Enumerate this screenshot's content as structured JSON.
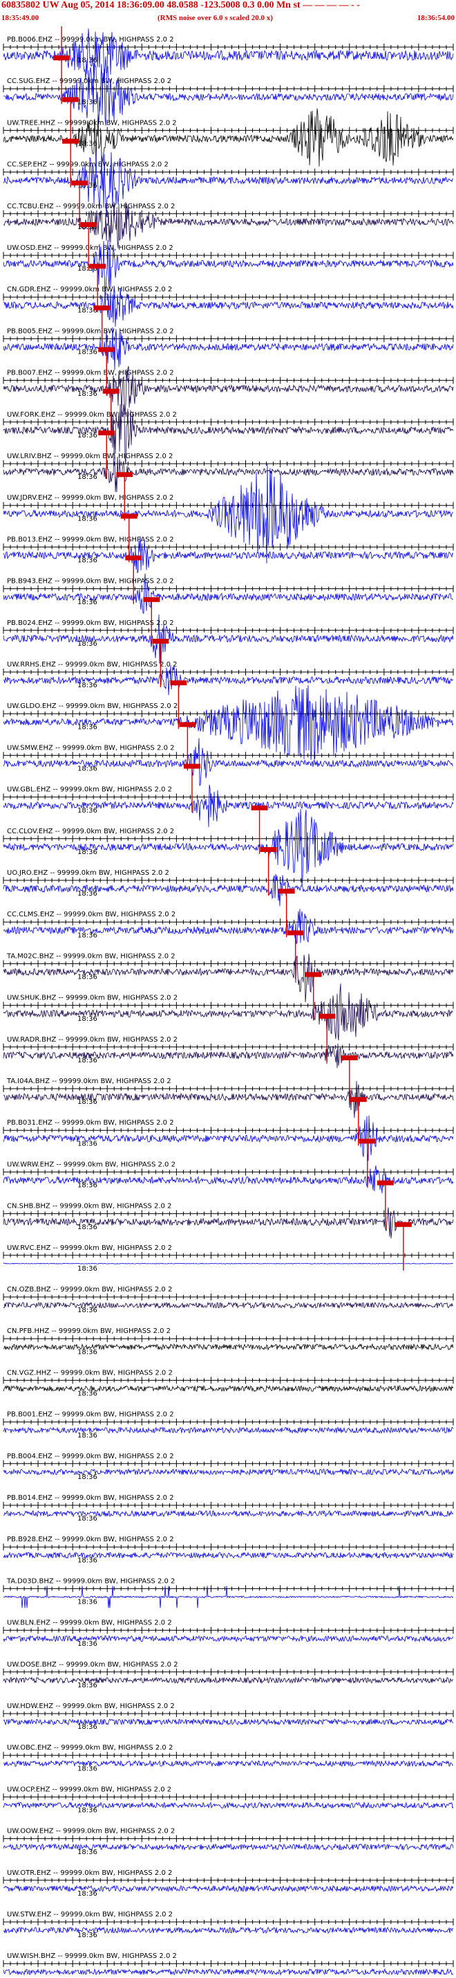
{
  "header": {
    "title": "60835802 UW Aug 05, 2014 18:36:09.00    48.0588 -123.5008  0.3 0.00 Mn st — — — — - -",
    "start_time": "18:35:49.00",
    "end_time": "18:36:54.00",
    "subtitle": "(RMS noise over 6.0 s scaled 20.0 x)"
  },
  "minute_label": "18:36",
  "colors": {
    "header": "#d40000",
    "pick": "#d40000",
    "trace_blue": "#0000e6",
    "trace_dark": "#14004b",
    "trace_black": "#000000"
  },
  "traces": [
    {
      "label": "PB.B006.EHZ -- 99999.0km BW, HIGHPASS  2.0  2",
      "color": "blue",
      "amp": 7,
      "burst": [
        0.12,
        0.3,
        2.0
      ],
      "pick": 0.12
    },
    {
      "label": "CC.SUG.EHZ -- 99999.0km BW, HIGHPASS  2.0  2",
      "color": "blue",
      "amp": 5,
      "burst": [
        0.13,
        0.3,
        3.5
      ],
      "pick": 0.12
    },
    {
      "label": "UW.TREE.HHZ -- 99999.0km BW, HIGHPASS  2.0  2",
      "color": "black",
      "amp": 5,
      "burst": [
        0.15,
        0.27,
        2.4
      ],
      "burst2": [
        0.63,
        0.77,
        3.2
      ],
      "burst3": [
        0.78,
        0.94,
        2.6
      ],
      "pick": 0.14
    },
    {
      "label": "CC.SEP.EHZ -- 99999.0km BW, HIGHPASS  2.0  2",
      "color": "blue",
      "amp": 5,
      "burst": [
        0.15,
        0.3,
        3.4
      ],
      "pick": 0.14
    },
    {
      "label": "CC.TCBU.EHZ -- 99999.0km BW, HIGHPASS  2.0  2",
      "color": "dark",
      "amp": 5,
      "burst": [
        0.16,
        0.35,
        2.2
      ],
      "pick": 0.16
    },
    {
      "label": "UW.OSD.EHZ -- 99999.0km BW, HIGHPASS  2.0  2",
      "color": "blue",
      "amp": 5,
      "burst": [
        0.19,
        0.26,
        3.2
      ],
      "pick": 0.18
    },
    {
      "label": "CN.GDR.EHZ -- 99999.0km BW, HIGHPASS  2.0  2",
      "color": "blue",
      "amp": 5,
      "burst": [
        0.2,
        0.3,
        1.8
      ],
      "pick": 0.2
    },
    {
      "label": "PB.B005.EHZ -- 99999.0km BW, HIGHPASS  2.0  2",
      "color": "blue",
      "amp": 5,
      "burst": [
        0.21,
        0.28,
        2.4
      ],
      "pick": 0.21
    },
    {
      "label": "PB.B007.EHZ -- 99999.0km BW, HIGHPASS  2.0  2",
      "color": "dark",
      "amp": 5,
      "burst": [
        0.22,
        0.32,
        2.2
      ],
      "pick": 0.22
    },
    {
      "label": "UW.FORK.EHZ -- 99999.0km BW, HIGHPASS  2.0  2",
      "color": "dark",
      "amp": 5,
      "burst": [
        0.23,
        0.3,
        4.0
      ],
      "pick": 0.23
    },
    {
      "label": "UW.LRIV.BHZ -- 99999.0km BW, HIGHPASS  2.0  2",
      "color": "dark",
      "amp": 5,
      "burst": [
        0.22,
        0.28,
        2.0
      ],
      "pick": 0.22
    },
    {
      "label": "UW.JDRV.EHZ -- 99999.0km BW, HIGHPASS  2.0  2",
      "color": "blue",
      "amp": 5,
      "burst": [
        0.45,
        0.72,
        4.6
      ],
      "pick": 0.26
    },
    {
      "label": "PB.B013.EHZ -- 99999.0km BW, HIGHPASS  2.0  2",
      "color": "blue",
      "amp": 5,
      "burst": [
        0.27,
        0.34,
        1.8
      ],
      "pick": 0.27
    },
    {
      "label": "PB.B943.EHZ -- 99999.0km BW, HIGHPASS  2.0  2",
      "color": "blue",
      "amp": 5,
      "burst": [
        0.29,
        0.34,
        2.0
      ],
      "pick": 0.28
    },
    {
      "label": "PB.B024.EHZ -- 99999.0km BW, HIGHPASS  2.0  2",
      "color": "blue",
      "amp": 5,
      "burst": [
        0.32,
        0.38,
        2.8
      ],
      "pick": 0.32
    },
    {
      "label": "UW.RRHS.EHZ -- 99999.0km BW, HIGHPASS  2.0  2",
      "color": "blue",
      "amp": 5,
      "burst": [
        0.34,
        0.4,
        1.6
      ],
      "pick": 0.34
    },
    {
      "label": "UW.GLDO.EHZ -- 99999.0km BW, HIGHPASS  2.0  2",
      "color": "blue",
      "amp": 5,
      "burst": [
        0.38,
        0.98,
        3.6
      ],
      "pick": 0.38
    },
    {
      "label": "UW.SMW.EHZ -- 99999.0km BW, HIGHPASS  2.0  2",
      "color": "blue",
      "amp": 5,
      "burst": [
        0.4,
        0.47,
        2.2
      ],
      "pick": 0.4
    },
    {
      "label": "UW.GBL.EHZ -- 99999.0km BW, HIGHPASS  2.0  2",
      "color": "blue",
      "amp": 5,
      "burst": [
        0.41,
        0.5,
        2.2
      ],
      "pick": 0.41
    },
    {
      "label": "CC.CLOV.EHZ -- 99999.0km BW, HIGHPASS  2.0  2",
      "color": "blue",
      "amp": 5,
      "burst": [
        0.57,
        0.76,
        3.6
      ],
      "pick": 0.56
    },
    {
      "label": "UO.JRO.EHZ -- 99999.0km BW, HIGHPASS  2.0  2",
      "color": "blue",
      "amp": 5,
      "burst": [
        0.58,
        0.64,
        1.6
      ],
      "pick": 0.58
    },
    {
      "label": "CC.CLMS.EHZ -- 99999.0km BW, HIGHPASS  2.0  2",
      "color": "blue",
      "amp": 5,
      "burst": [
        0.62,
        0.7,
        1.8
      ],
      "pick": 0.62
    },
    {
      "label": "TA.M02C.BHZ -- 99999.0km BW, HIGHPASS  2.0  2",
      "color": "dark",
      "amp": 5,
      "burst": [
        0.64,
        0.7,
        3.2
      ],
      "pick": 0.64
    },
    {
      "label": "UW.SHUK.BHZ -- 99999.0km BW, HIGHPASS  2.0  2",
      "color": "dark",
      "amp": 5,
      "burst": [
        0.68,
        0.84,
        3.0
      ],
      "pick": 0.68
    },
    {
      "label": "UW.RADR.BHZ -- 99999.0km BW, HIGHPASS  2.0  2",
      "color": "dark",
      "amp": 5,
      "burst": [
        0.71,
        0.76,
        1.4
      ],
      "pick": 0.71
    },
    {
      "label": "TA.I04A.BHZ -- 99999.0km BW, HIGHPASS  2.0  2",
      "color": "dark",
      "amp": 5,
      "burst": [
        0.76,
        0.8,
        1.8
      ],
      "pick": 0.76
    },
    {
      "label": "PB.B031.EHZ -- 99999.0km BW, HIGHPASS  2.0  2",
      "color": "blue",
      "amp": 5,
      "burst": [
        0.78,
        0.84,
        2.2
      ],
      "pick": 0.78
    },
    {
      "label": "UW.WRW.EHZ -- 99999.0km BW, HIGHPASS  2.0  2",
      "color": "blue",
      "amp": 5,
      "burst": [
        0.8,
        0.86,
        1.6
      ],
      "pick": 0.8
    },
    {
      "label": "CN.SHB.BHZ -- 99999.0km BW, HIGHPASS  2.0  2",
      "color": "dark",
      "amp": 5,
      "burst": [
        0.84,
        0.88,
        1.4
      ],
      "pick": 0.84
    },
    {
      "label": "UW.RVC.EHZ -- 99999.0km BW, HIGHPASS  2.0  2",
      "color": "blue",
      "amp": 0.4,
      "burst": [
        0,
        0,
        1
      ],
      "pick": 0.88
    },
    {
      "label": "CN.OZB.BHZ -- 99999.0km BW, HIGHPASS  2.0  2",
      "color": "dark",
      "amp": 4
    },
    {
      "label": "CN.PFB.HHZ -- 99999.0km BW, HIGHPASS  2.0  2",
      "color": "black",
      "amp": 4
    },
    {
      "label": "CN.VGZ.HHZ -- 99999.0km BW, HIGHPASS  2.0  2",
      "color": "black",
      "amp": 4
    },
    {
      "label": "PB.B001.EHZ -- 99999.0km BW, HIGHPASS  2.0  2",
      "color": "blue",
      "amp": 4
    },
    {
      "label": "PB.B004.EHZ -- 99999.0km BW, HIGHPASS  2.0  2",
      "color": "blue",
      "amp": 4
    },
    {
      "label": "PB.B014.EHZ -- 99999.0km BW, HIGHPASS  2.0  2",
      "color": "blue",
      "amp": 4
    },
    {
      "label": "PB.B928.EHZ -- 99999.0km BW, HIGHPASS  2.0  2",
      "color": "blue",
      "amp": 4
    },
    {
      "label": "TA.D03D.BHZ -- 99999.0km BW, HIGHPASS  2.0  2",
      "color": "blue",
      "amp": 1.2,
      "spikes": true
    },
    {
      "label": "UW.BLN.EHZ -- 99999.0km BW, HIGHPASS  2.0  2",
      "color": "blue",
      "amp": 4
    },
    {
      "label": "UW.DOSE.BHZ -- 99999.0km BW, HIGHPASS  2.0  2",
      "color": "dark",
      "amp": 4
    },
    {
      "label": "UW.HDW.EHZ -- 99999.0km BW, HIGHPASS  2.0  2",
      "color": "blue",
      "amp": 4
    },
    {
      "label": "UW.OBC.EHZ -- 99999.0km BW, HIGHPASS  2.0  2",
      "color": "blue",
      "amp": 4
    },
    {
      "label": "UW.OCP.EHZ -- 99999.0km BW, HIGHPASS  2.0  2",
      "color": "blue",
      "amp": 4
    },
    {
      "label": "UW.OOW.EHZ -- 99999.0km BW, HIGHPASS  2.0  2",
      "color": "blue",
      "amp": 4
    },
    {
      "label": "UW.OTR.EHZ -- 99999.0km BW, HIGHPASS  2.0  2",
      "color": "blue",
      "amp": 4
    },
    {
      "label": "UW.STW.EHZ -- 99999.0km BW, HIGHPASS  2.0  2",
      "color": "blue",
      "amp": 4
    },
    {
      "label": "UW.WISH.BHZ -- 99999.0km BW, HIGHPASS  2.0  2",
      "color": "blue",
      "amp": 4
    }
  ]
}
